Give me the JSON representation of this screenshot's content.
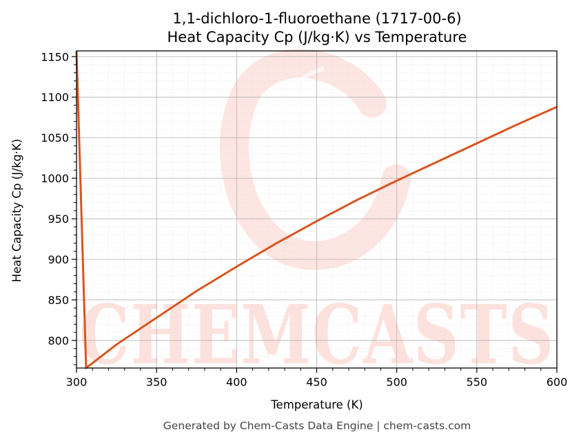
{
  "chart_data": {
    "type": "line",
    "title": "1,1-dichloro-1-fluoroethane (1717-00-6)",
    "subtitle": "Heat Capacity Cp (J/kg·K) vs Temperature",
    "xlabel": "Temperature (K)",
    "ylabel": "Heat Capacity Cp (J/kg·K)",
    "xlim": [
      300,
      600
    ],
    "ylim": [
      766,
      1157
    ],
    "xticks": [
      300,
      350,
      400,
      450,
      500,
      550,
      600
    ],
    "yticks": [
      800,
      850,
      900,
      950,
      1000,
      1050,
      1100,
      1150
    ],
    "grid": true,
    "legend": "none",
    "series": [
      {
        "color": "#d9541e",
        "x": [
          300,
          306,
          325,
          350,
          375,
          400,
          425,
          450,
          475,
          500,
          525,
          550,
          575,
          600
        ],
        "y": [
          1157,
          766,
          795,
          828,
          861,
          891,
          920,
          947,
          973,
          997,
          1020,
          1043,
          1066,
          1088
        ]
      }
    ]
  },
  "watermark": {
    "text": "CHEMCASTS",
    "color": "#fde1dc"
  },
  "footer": "Generated by Chem-Casts Data Engine | chem-casts.com"
}
